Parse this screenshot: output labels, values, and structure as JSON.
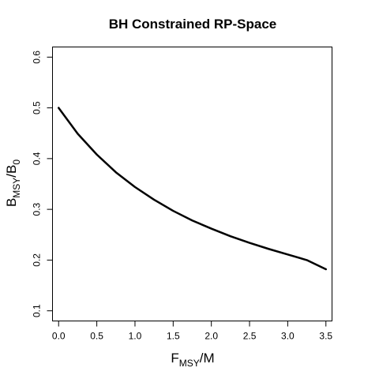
{
  "chart_data": {
    "type": "line",
    "title": "BH Constrained RP-Space",
    "xlabel": {
      "main": "F",
      "sub": "MSY",
      "suffix": "/M"
    },
    "ylabel": {
      "main": "B",
      "sub": "MSY",
      "sep": "/B",
      "sub2": "0"
    },
    "xlim": [
      -0.08,
      3.58
    ],
    "ylim": [
      0.08,
      0.62
    ],
    "xticks": [
      0.0,
      0.5,
      1.0,
      1.5,
      2.0,
      2.5,
      3.0,
      3.5
    ],
    "xtick_labels": [
      "0.0",
      "0.5",
      "1.0",
      "1.5",
      "2.0",
      "2.5",
      "3.0",
      "3.5"
    ],
    "yticks": [
      0.1,
      0.2,
      0.3,
      0.4,
      0.5,
      0.6
    ],
    "ytick_labels": [
      "0.1",
      "0.2",
      "0.3",
      "0.4",
      "0.5",
      "0.6"
    ],
    "grid": false,
    "series": [
      {
        "color": "#000000",
        "x": [
          0.0,
          0.25,
          0.5,
          0.75,
          1.0,
          1.25,
          1.5,
          1.75,
          2.0,
          2.25,
          2.5,
          2.75,
          3.0,
          3.25,
          3.5
        ],
        "y": [
          0.5,
          0.449,
          0.408,
          0.373,
          0.344,
          0.319,
          0.297,
          0.278,
          0.262,
          0.247,
          0.234,
          0.222,
          0.211,
          0.2,
          0.182
        ]
      }
    ]
  }
}
